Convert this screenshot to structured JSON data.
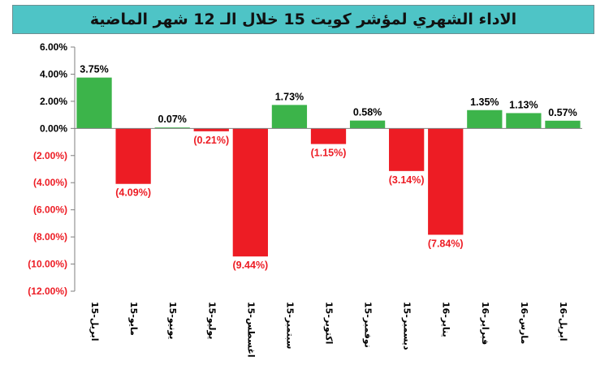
{
  "chart_data": {
    "type": "bar",
    "title": "الاداء الشهري لمؤشر كويت 15 خلال الـ 12 شهر الماضية",
    "categories": [
      "ابريل-15",
      "مايو-15",
      "يونيو-15",
      "يوليو-15",
      "اغسطس-15",
      "سبتمبر-15",
      "اكتوبر-15",
      "نوفمبر-15",
      "ديسمبر-15",
      "يناير-16",
      "فبراير-16",
      "مارس-16",
      "ابريل-16"
    ],
    "values": [
      3.75,
      -4.09,
      0.07,
      -0.21,
      -9.44,
      1.73,
      -1.15,
      0.58,
      -3.14,
      -7.84,
      1.35,
      1.13,
      0.57
    ],
    "value_labels": [
      "3.75%",
      "(4.09%)",
      "0.07%",
      "(0.21%)",
      "(9.44%)",
      "1.73%",
      "(1.15%)",
      "0.58%",
      "(3.14%)",
      "(7.84%)",
      "1.35%",
      "1.13%",
      "0.57%"
    ],
    "ylim": [
      -12,
      6
    ],
    "yticks": [
      6,
      4,
      2,
      0,
      -2,
      -4,
      -6,
      -8,
      -10,
      -12
    ],
    "ytick_labels": [
      "6.00%",
      "4.00%",
      "2.00%",
      "0.00%",
      "(2.00%)",
      "(4.00%)",
      "(6.00%)",
      "(8.00%)",
      "(10.00%)",
      "(12.00%)"
    ],
    "xlabel": "",
    "ylabel": "",
    "grid": false,
    "legend": "none",
    "colors": {
      "positive": "#3cb44a",
      "negative": "#ed1c24",
      "positive_text": "#000000",
      "negative_text": "#ed1c24",
      "axis": "#7f7f7f",
      "title_bg": "#4ec4c6"
    }
  }
}
